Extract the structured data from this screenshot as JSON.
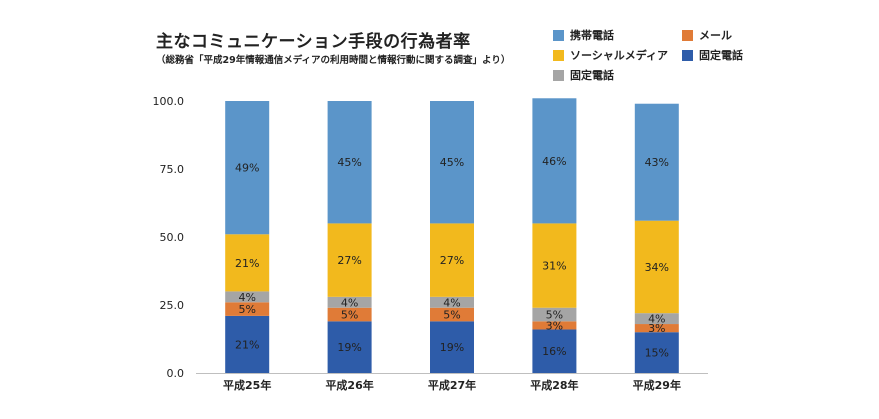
{
  "header": {
    "title": "主なコミュニケーション手段の行為者率",
    "subtitle": "（総務省「平成29年情報通信メディアの利用時間と情報行動に関する調査」より）"
  },
  "legend": [
    {
      "name": "携帯電話",
      "color": "#5b95c9"
    },
    {
      "name": "メール",
      "color": "#e07b37"
    },
    {
      "name": "ソーシャルメディア",
      "color": "#f2b91d"
    },
    {
      "name": "固定電話",
      "color": "#2e5ca9"
    },
    {
      "name": "固定電話",
      "color": "#a5a5a5"
    }
  ],
  "chart_data": {
    "type": "bar",
    "stacked": true,
    "categories": [
      "平成25年",
      "平成26年",
      "平成27年",
      "平成28年",
      "平成29年"
    ],
    "ylim": [
      0,
      100
    ],
    "yticks": [
      "0.0",
      "25.0",
      "50.0",
      "75.0",
      "100.0"
    ],
    "grid": false,
    "legend_position": "top-right",
    "series": [
      {
        "name": "固定電話",
        "color": "#2e5ca9",
        "values": [
          21,
          19,
          19,
          16,
          15
        ],
        "labels": [
          "21%",
          "19%",
          "19%",
          "16%",
          "15%"
        ]
      },
      {
        "name": "メール",
        "color": "#e07b37",
        "values": [
          5,
          5,
          5,
          3,
          3
        ],
        "labels": [
          "5%",
          "5%",
          "5%",
          "3%",
          "3%"
        ]
      },
      {
        "name": "固定電話",
        "color": "#a5a5a5",
        "values": [
          4,
          4,
          4,
          5,
          4
        ],
        "labels": [
          "4%",
          "4%",
          "4%",
          "5%",
          "4%"
        ]
      },
      {
        "name": "ソーシャルメディア",
        "color": "#f2b91d",
        "values": [
          21,
          27,
          27,
          31,
          34
        ],
        "labels": [
          "21%",
          "27%",
          "27%",
          "31%",
          "34%"
        ]
      },
      {
        "name": "携帯電話",
        "color": "#5b95c9",
        "values": [
          49,
          45,
          45,
          46,
          43
        ],
        "labels": [
          "49%",
          "45%",
          "45%",
          "46%",
          "43%"
        ]
      }
    ]
  }
}
